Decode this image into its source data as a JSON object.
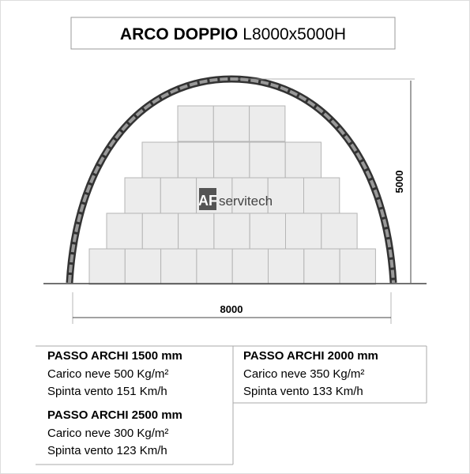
{
  "header": {
    "title": "ARCO DOPPIO",
    "subtitle": "L8000x5000H"
  },
  "drawing": {
    "height_label": "5000",
    "width_label": "8000",
    "logo": {
      "mark": "AF",
      "text": "servitech"
    }
  },
  "specs": [
    {
      "heading": "PASSO ARCHI 1500 mm",
      "snow": "Carico neve 500 Kg/m²",
      "wind": "Spinta vento 151 Km/h"
    },
    {
      "heading": "PASSO ARCHI 2000 mm",
      "snow": "Carico neve 350 Kg/m²",
      "wind": "Spinta vento 133 Km/h"
    },
    {
      "heading": "PASSO ARCHI 2500 mm",
      "snow": "Carico neve 300 Kg/m²",
      "wind": "Spinta vento 123 Km/h"
    }
  ]
}
